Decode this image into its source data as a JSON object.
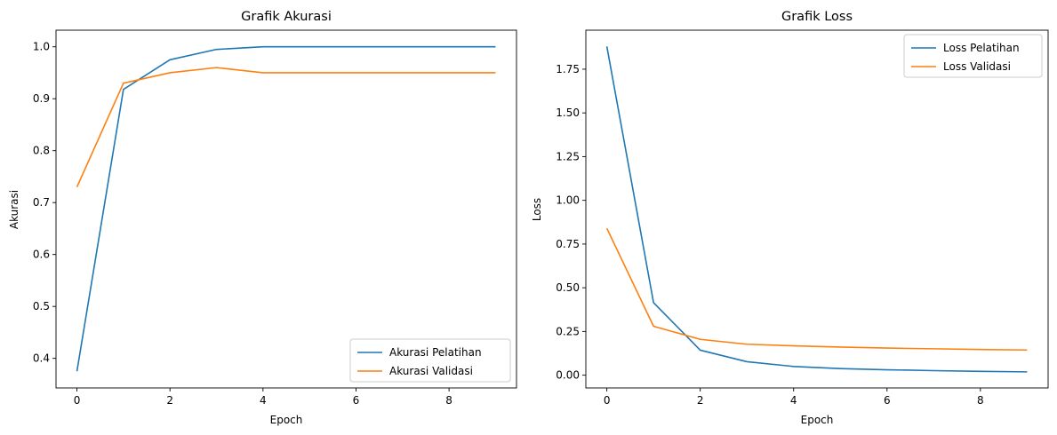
{
  "chart_data": [
    {
      "type": "line",
      "title": "Grafik Akurasi",
      "xlabel": "Epoch",
      "ylabel": "Akurasi",
      "x": [
        0,
        1,
        2,
        3,
        4,
        5,
        6,
        7,
        8,
        9
      ],
      "xlim": [
        -0.45,
        9.45
      ],
      "ylim": [
        0.343,
        1.032
      ],
      "xticks": [
        0,
        2,
        4,
        6,
        8
      ],
      "xtick_labels": [
        "0",
        "2",
        "4",
        "6",
        "8"
      ],
      "yticks": [
        0.4,
        0.5,
        0.6,
        0.7,
        0.8,
        0.9,
        1.0
      ],
      "ytick_labels": [
        "0.4",
        "0.5",
        "0.6",
        "0.7",
        "0.8",
        "0.9",
        "1.0"
      ],
      "legend_position": "lower-right",
      "series": [
        {
          "name": "Akurasi Pelatihan",
          "color": "#1f77b4",
          "values": [
            0.375,
            0.918,
            0.975,
            0.995,
            1.0,
            1.0,
            1.0,
            1.0,
            1.0,
            1.0
          ]
        },
        {
          "name": "Akurasi Validasi",
          "color": "#ff7f0e",
          "values": [
            0.73,
            0.93,
            0.95,
            0.96,
            0.95,
            0.95,
            0.95,
            0.95,
            0.95,
            0.95
          ]
        }
      ],
      "grid": false
    },
    {
      "type": "line",
      "title": "Grafik Loss",
      "xlabel": "Epoch",
      "ylabel": "Loss",
      "x": [
        0,
        1,
        2,
        3,
        4,
        5,
        6,
        7,
        8,
        9
      ],
      "xlim": [
        -0.45,
        9.45
      ],
      "ylim": [
        -0.073,
        1.973
      ],
      "xticks": [
        0,
        2,
        4,
        6,
        8
      ],
      "xtick_labels": [
        "0",
        "2",
        "4",
        "6",
        "8"
      ],
      "yticks": [
        0.0,
        0.25,
        0.5,
        0.75,
        1.0,
        1.25,
        1.5,
        1.75
      ],
      "ytick_labels": [
        "0.00",
        "0.25",
        "0.50",
        "0.75",
        "1.00",
        "1.25",
        "1.50",
        "1.75"
      ],
      "legend_position": "upper-right",
      "series": [
        {
          "name": "Loss Pelatihan",
          "color": "#1f77b4",
          "values": [
            1.88,
            0.415,
            0.143,
            0.077,
            0.05,
            0.038,
            0.031,
            0.026,
            0.022,
            0.019
          ]
        },
        {
          "name": "Loss Validasi",
          "color": "#ff7f0e",
          "values": [
            0.84,
            0.28,
            0.205,
            0.177,
            0.168,
            0.161,
            0.155,
            0.151,
            0.147,
            0.144
          ]
        }
      ],
      "grid": false
    }
  ]
}
